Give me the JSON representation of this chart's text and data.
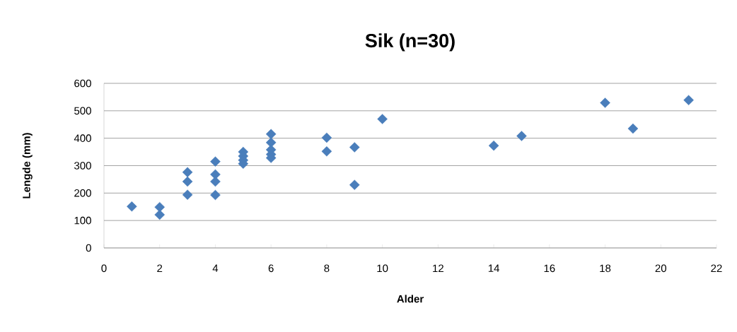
{
  "chart_data": {
    "type": "scatter",
    "title": "Sik (n=30)",
    "xlabel": "Alder",
    "ylabel": "Lengde (mm)",
    "x": [
      1,
      2,
      2,
      3,
      3,
      3,
      4,
      4,
      4,
      4,
      5,
      5,
      5,
      5,
      6,
      6,
      6,
      6,
      6,
      8,
      8,
      9,
      9,
      10,
      14,
      15,
      18,
      19,
      21
    ],
    "values": [
      151,
      149,
      121,
      276,
      242,
      194,
      315,
      268,
      242,
      193,
      350,
      335,
      320,
      307,
      415,
      384,
      358,
      341,
      328,
      402,
      352,
      367,
      230,
      470,
      373,
      408,
      529,
      435,
      539
    ],
    "color": "#4a7ebb",
    "marker": "diamond",
    "grid": "y",
    "xlim": [
      0,
      22
    ],
    "xticks": [
      0,
      2,
      4,
      6,
      8,
      10,
      12,
      14,
      16,
      18,
      20,
      22
    ],
    "ylim": [
      0,
      600
    ],
    "yticks": [
      0,
      100,
      200,
      300,
      400,
      500,
      600
    ]
  }
}
